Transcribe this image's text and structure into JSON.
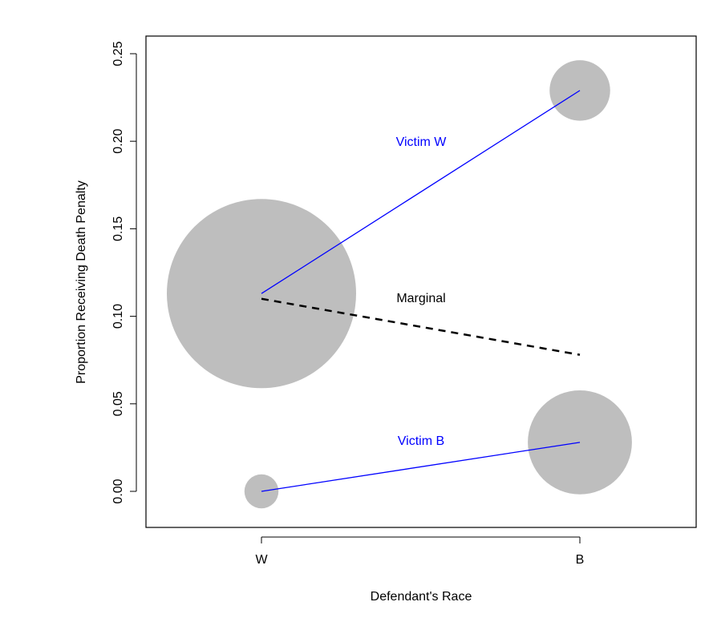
{
  "chart_data": {
    "type": "scatter",
    "xlabel": "Defendant's Race",
    "ylabel": "Proportion Receiving Death Penalty",
    "categories": [
      "W",
      "B"
    ],
    "ylim": [
      -0.02,
      0.25
    ],
    "yticks": [
      0.0,
      0.05,
      0.1,
      0.15,
      0.2,
      0.25
    ],
    "ytick_labels": [
      "0.00",
      "0.05",
      "0.10",
      "0.15",
      "0.20",
      "0.25"
    ],
    "grid": false,
    "colors": {
      "victim": "#0000ff",
      "marginal": "#000000",
      "bubble": "#bebebe"
    },
    "series": [
      {
        "name": "Victim W",
        "values": [
          0.113,
          0.229
        ],
        "line": "solid",
        "color": "#0000ff"
      },
      {
        "name": "Marginal",
        "values": [
          0.11,
          0.078
        ],
        "line": "dashed",
        "color": "#000000"
      },
      {
        "name": "Victim B",
        "values": [
          0.0,
          0.028
        ],
        "line": "solid",
        "color": "#0000ff"
      }
    ],
    "bubbles": [
      {
        "category": "W",
        "value": 0.113,
        "relative_size": 1.0
      },
      {
        "category": "B",
        "value": 0.229,
        "relative_size": 0.32
      },
      {
        "category": "W",
        "value": 0.0,
        "relative_size": 0.18
      },
      {
        "category": "B",
        "value": 0.028,
        "relative_size": 0.55
      }
    ]
  }
}
